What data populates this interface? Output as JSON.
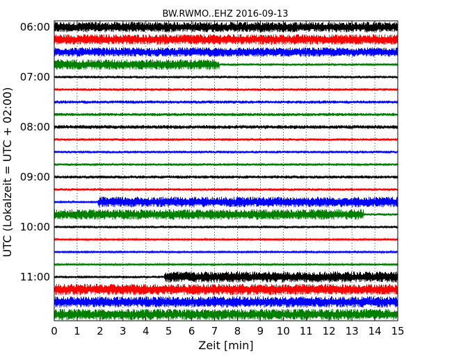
{
  "chart_data": {
    "type": "line",
    "title": "BW.RWMO..EHZ 2016-09-13",
    "xlabel": "Zeit  [min]",
    "ylabel": "UTC (Lokalzeit = UTC + 02:00)",
    "xlim": [
      0,
      15
    ],
    "x_ticks": [
      "0",
      "1",
      "2",
      "3",
      "4",
      "5",
      "6",
      "7",
      "8",
      "9",
      "10",
      "11",
      "12",
      "13",
      "14",
      "15"
    ],
    "y_ticks": [
      "06:00",
      "07:00",
      "08:00",
      "09:00",
      "10:00",
      "11:00"
    ],
    "grid": "vertical dotted",
    "color_cycle": [
      "#000000",
      "#ff0000",
      "#0000ff",
      "#008000"
    ],
    "traces": [
      {
        "start": "06:00",
        "color": "#000000",
        "amplitude": [
          [
            0,
            15,
            0.85
          ]
        ]
      },
      {
        "start": "06:15",
        "color": "#ff0000",
        "amplitude": [
          [
            0,
            15,
            0.85
          ]
        ]
      },
      {
        "start": "06:30",
        "color": "#0000ff",
        "amplitude": [
          [
            0,
            15,
            0.75
          ]
        ]
      },
      {
        "start": "06:45",
        "color": "#008000",
        "amplitude": [
          [
            0,
            7.2,
            0.85
          ],
          [
            7.2,
            15,
            0.18
          ]
        ]
      },
      {
        "start": "07:00",
        "color": "#000000",
        "amplitude": [
          [
            0,
            15,
            0.2
          ]
        ]
      },
      {
        "start": "07:15",
        "color": "#ff0000",
        "amplitude": [
          [
            0,
            15,
            0.2
          ]
        ]
      },
      {
        "start": "07:30",
        "color": "#0000ff",
        "amplitude": [
          [
            0,
            15,
            0.25
          ]
        ]
      },
      {
        "start": "07:45",
        "color": "#008000",
        "amplitude": [
          [
            0,
            15,
            0.25
          ]
        ]
      },
      {
        "start": "08:00",
        "color": "#000000",
        "amplitude": [
          [
            0,
            15,
            0.3
          ]
        ]
      },
      {
        "start": "08:15",
        "color": "#ff0000",
        "amplitude": [
          [
            0,
            15,
            0.2
          ]
        ]
      },
      {
        "start": "08:30",
        "color": "#0000ff",
        "amplitude": [
          [
            0,
            15,
            0.2
          ]
        ]
      },
      {
        "start": "08:45",
        "color": "#008000",
        "amplitude": [
          [
            0,
            15,
            0.2
          ]
        ]
      },
      {
        "start": "09:00",
        "color": "#000000",
        "amplitude": [
          [
            0,
            15,
            0.25
          ]
        ]
      },
      {
        "start": "09:15",
        "color": "#ff0000",
        "amplitude": [
          [
            0,
            15,
            0.2
          ]
        ]
      },
      {
        "start": "09:30",
        "color": "#0000ff",
        "amplitude": [
          [
            0,
            1.9,
            0.15
          ],
          [
            1.9,
            15,
            0.85
          ]
        ]
      },
      {
        "start": "09:45",
        "color": "#008000",
        "amplitude": [
          [
            0,
            13.5,
            0.85
          ],
          [
            13.5,
            15,
            0.2
          ]
        ]
      },
      {
        "start": "10:00",
        "color": "#000000",
        "amplitude": [
          [
            0,
            15,
            0.2
          ]
        ]
      },
      {
        "start": "10:15",
        "color": "#ff0000",
        "amplitude": [
          [
            0,
            15,
            0.15
          ]
        ]
      },
      {
        "start": "10:30",
        "color": "#0000ff",
        "amplitude": [
          [
            0,
            15,
            0.15
          ]
        ]
      },
      {
        "start": "10:45",
        "color": "#008000",
        "amplitude": [
          [
            0,
            15,
            0.15
          ]
        ]
      },
      {
        "start": "11:00",
        "color": "#000000",
        "amplitude": [
          [
            0,
            4.8,
            0.2
          ],
          [
            4.8,
            15,
            0.9
          ]
        ]
      },
      {
        "start": "11:15",
        "color": "#ff0000",
        "amplitude": [
          [
            0,
            15,
            0.9
          ]
        ]
      },
      {
        "start": "11:30",
        "color": "#0000ff",
        "amplitude": [
          [
            0,
            15,
            0.9
          ]
        ]
      },
      {
        "start": "11:45",
        "color": "#008000",
        "amplitude": [
          [
            0,
            15,
            0.9
          ]
        ]
      }
    ]
  }
}
